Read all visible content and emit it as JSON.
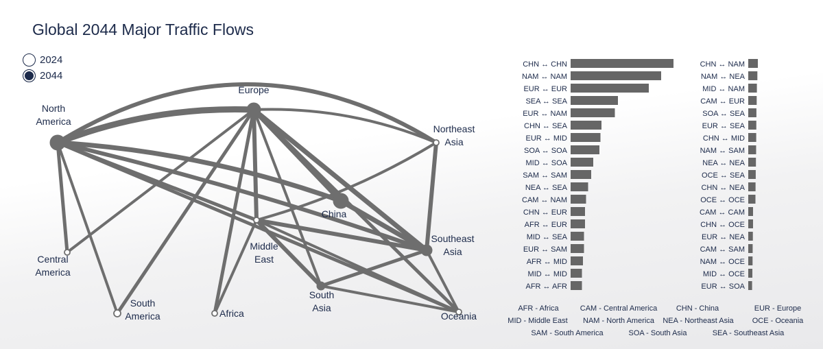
{
  "title": "Global 2044 Major Traffic Flows",
  "year_selector": [
    {
      "label": "2024",
      "selected": false
    },
    {
      "label": "2044",
      "selected": true
    }
  ],
  "colors": {
    "flow": "#6e6e6e",
    "bar": "#666666",
    "text": "#1c2a4a"
  },
  "regions": [
    {
      "id": "NAM",
      "label": [
        "North",
        "America"
      ]
    },
    {
      "id": "EUR",
      "label": [
        "Europe"
      ]
    },
    {
      "id": "NEA",
      "label": [
        "Northeast",
        "Asia"
      ]
    },
    {
      "id": "CHN",
      "label": [
        "China"
      ]
    },
    {
      "id": "SEA",
      "label": [
        "Southeast",
        "Asia"
      ]
    },
    {
      "id": "CAM",
      "label": [
        "Central",
        "America"
      ]
    },
    {
      "id": "SAM",
      "label": [
        "South",
        "America"
      ]
    },
    {
      "id": "AFR",
      "label": [
        "Africa"
      ]
    },
    {
      "id": "MID",
      "label": [
        "Middle",
        "East"
      ]
    },
    {
      "id": "SOA",
      "label": [
        "South",
        "Asia"
      ]
    },
    {
      "id": "OCE",
      "label": [
        "Oceania"
      ]
    }
  ],
  "chart_data": {
    "type": "bar",
    "orientation": "horizontal",
    "series": [
      {
        "categories": [
          "CHN ↔ CHN",
          "NAM ↔ NAM",
          "EUR ↔ EUR",
          "SEA ↔ SEA",
          "EUR ↔ NAM",
          "CHN ↔ SEA",
          "EUR ↔ MID",
          "SOA ↔ SOA",
          "MID ↔ SOA",
          "SAM ↔ SAM",
          "NEA ↔ SEA",
          "CAM ↔ NAM",
          "CHN ↔ EUR",
          "AFR ↔ EUR",
          "MID ↔ SEA",
          "EUR ↔ SAM",
          "AFR ↔ MID",
          "MID ↔ MID",
          "AFR ↔ AFR"
        ],
        "values": [
          100,
          88,
          76,
          46,
          43,
          30,
          29,
          28,
          22,
          20,
          17,
          15,
          14,
          14,
          13,
          13,
          12,
          11,
          11
        ]
      },
      {
        "categories": [
          "CHN ↔ NAM",
          "NAM ↔ NEA",
          "MID ↔ NAM",
          "CAM ↔ EUR",
          "SOA ↔ SEA",
          "EUR ↔ SEA",
          "CHN ↔ MID",
          "NAM ↔ SAM",
          "NEA ↔ NEA",
          "OCE ↔ SEA",
          "CHN ↔ NEA",
          "OCE ↔ OCE",
          "CAM ↔ CAM",
          "CHN ↔ OCE",
          "EUR ↔ NEA",
          "CAM ↔ SAM",
          "NAM ↔ OCE",
          "MID ↔ OCE",
          "EUR ↔ SOA"
        ],
        "values": [
          10,
          9.5,
          9,
          8.8,
          8.5,
          8.4,
          8.3,
          8.2,
          8,
          7.8,
          7.6,
          7.5,
          5,
          5,
          4.8,
          4.6,
          4.5,
          4.3,
          4
        ]
      }
    ]
  },
  "abbreviations": [
    [
      "AFR - Africa",
      "CAM - Central America",
      "CHN - China",
      "EUR - Europe"
    ],
    [
      "MID - Middle East",
      "NAM - North America",
      "NEA - Northeast Asia",
      "OCE - Oceania"
    ],
    [
      "SAM - South America",
      "SOA - South Asia",
      "SEA - Southeast Asia"
    ]
  ]
}
